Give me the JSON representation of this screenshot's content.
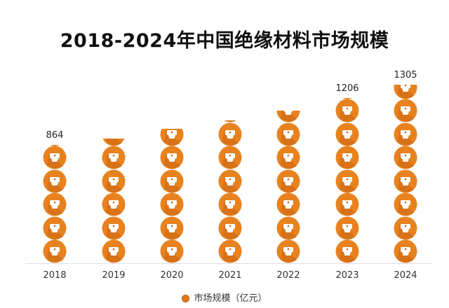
{
  "title": "2018-2024年中国绝缘材料市场规模",
  "legend": {
    "label": "市场规模（亿元）",
    "color": "#e07b1a"
  },
  "chart_data": {
    "type": "bar",
    "style": "pictorial stacked coin icons",
    "title": "2018-2024年中国绝缘材料市场规模",
    "categories": [
      "2018",
      "2019",
      "2020",
      "2021",
      "2022",
      "2023",
      "2024"
    ],
    "series": [
      {
        "name": "市场规模（亿元）",
        "values": [
          864,
          910,
          983,
          1045,
          1115,
          1206,
          1305
        ]
      }
    ],
    "data_labels": [
      "864",
      "",
      "",
      "",
      "",
      "1206",
      "1305"
    ],
    "xlabel": "",
    "ylabel": "",
    "ylim": [
      0,
      1400
    ],
    "grid": false,
    "legend_position": "bottom",
    "bar_color": "#e07b1a"
  }
}
